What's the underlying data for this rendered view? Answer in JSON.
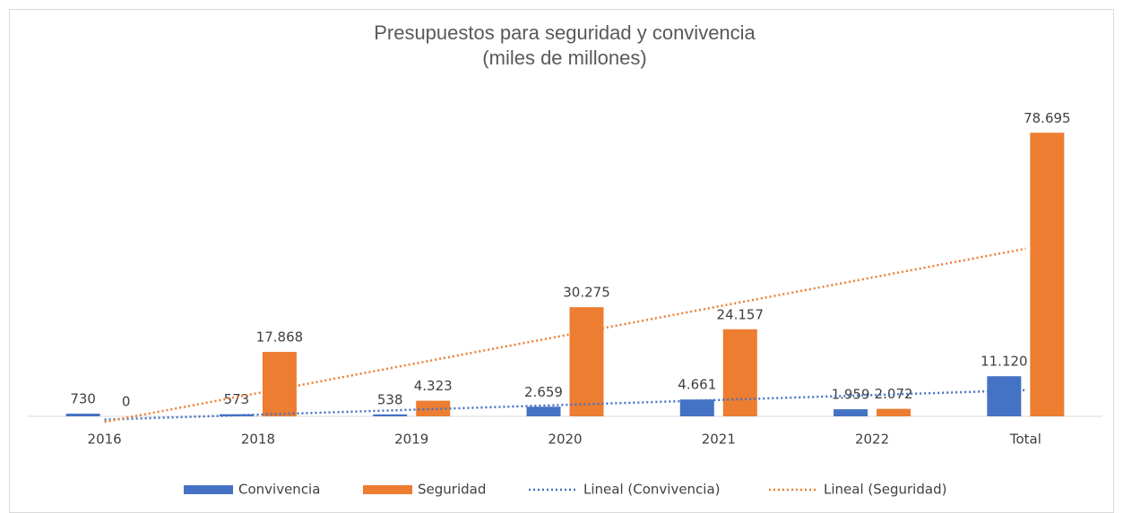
{
  "chart_data": {
    "type": "bar",
    "title": "Presupuestos para seguridad y convivencia",
    "subtitle": "(miles de millones)",
    "categories": [
      "2016",
      "2018",
      "2019",
      "2020",
      "2021",
      "2022",
      "Total"
    ],
    "series": [
      {
        "name": "Convivencia",
        "color": "#4472c4",
        "values": [
          730,
          573,
          538,
          2659,
          4661,
          1959,
          11120
        ],
        "value_labels": [
          "730",
          "573",
          "538",
          "2.659",
          "4.661",
          "1.959",
          "11.120"
        ]
      },
      {
        "name": "Seguridad",
        "color": "#ed7d31",
        "values": [
          0,
          17868,
          4323,
          30275,
          24157,
          2072,
          78695
        ],
        "value_labels": [
          "0",
          "17.868",
          "4.323",
          "30.275",
          "24.157",
          "2.072",
          "78.695"
        ]
      }
    ],
    "trendlines": [
      {
        "name": "Lineal (Convivencia)",
        "series": 0,
        "color": "#4472c4"
      },
      {
        "name": "Lineal (Seguridad)",
        "series": 1,
        "color": "#ed7d31"
      }
    ],
    "ylim": [
      0,
      80000
    ],
    "legend": "bottom"
  }
}
